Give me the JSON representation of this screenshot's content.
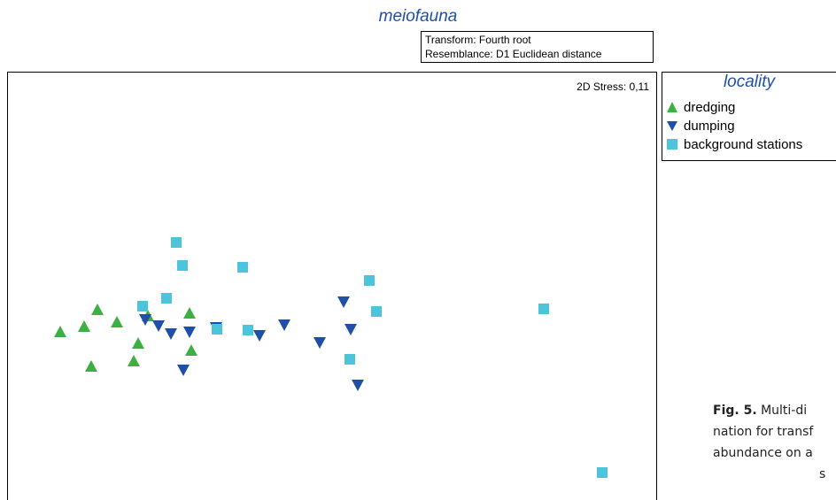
{
  "title": "meiofauna",
  "transform_box": {
    "line1": "Transform: Fourth root",
    "line2": "Resemblance: D1 Euclidean distance"
  },
  "stress_label": "2D Stress: 0,11",
  "legend": {
    "title": "locality",
    "items": [
      {
        "label": "dredging",
        "marker": "triangle-up",
        "color": "#3cb043"
      },
      {
        "label": "dumping",
        "marker": "triangle-down",
        "color": "#1f4fa8"
      },
      {
        "label": "background stations",
        "marker": "square",
        "color": "#4cc4dc"
      }
    ]
  },
  "caption": {
    "fig_label": "Fig. 5.",
    "lines": [
      " Multi-di",
      "nation for transf",
      "abundance on a",
      "s"
    ]
  },
  "chart_data": {
    "type": "scatter",
    "title": "meiofauna",
    "xlabel": "",
    "ylabel": "",
    "xlim": [
      0,
      733
    ],
    "ylim": [
      0,
      520
    ],
    "grid": false,
    "legend_position": "right",
    "series": [
      {
        "name": "dredging",
        "marker": "triangle-up",
        "color": "#3cb043",
        "points": [
          [
            95,
            188
          ],
          [
            143,
            194
          ],
          [
            148,
            214
          ],
          [
            208,
            206
          ],
          [
            60,
            227
          ],
          [
            87,
            233
          ],
          [
            124,
            238
          ],
          [
            102,
            252
          ],
          [
            159,
            245
          ],
          [
            206,
            248
          ]
        ]
      },
      {
        "name": "dumping",
        "marker": "triangle-down",
        "color": "#1f4fa8",
        "points": [
          [
            156,
            241
          ],
          [
            185,
            225
          ],
          [
            171,
            234
          ],
          [
            206,
            227
          ],
          [
            236,
            232
          ],
          [
            313,
            235
          ],
          [
            285,
            223
          ],
          [
            199,
            184
          ],
          [
            380,
            261
          ],
          [
            388,
            230
          ],
          [
            353,
            215
          ],
          [
            396,
            167
          ]
        ]
      },
      {
        "name": "background stations",
        "marker": "square",
        "color": "#4cc4dc",
        "points": [
          [
            191,
            328
          ],
          [
            198,
            302
          ],
          [
            266,
            300
          ],
          [
            153,
            256
          ],
          [
            180,
            265
          ],
          [
            237,
            230
          ],
          [
            272,
            229
          ],
          [
            409,
            285
          ],
          [
            417,
            250
          ],
          [
            387,
            196
          ],
          [
            606,
            253
          ],
          [
            672,
            68
          ]
        ]
      }
    ]
  }
}
